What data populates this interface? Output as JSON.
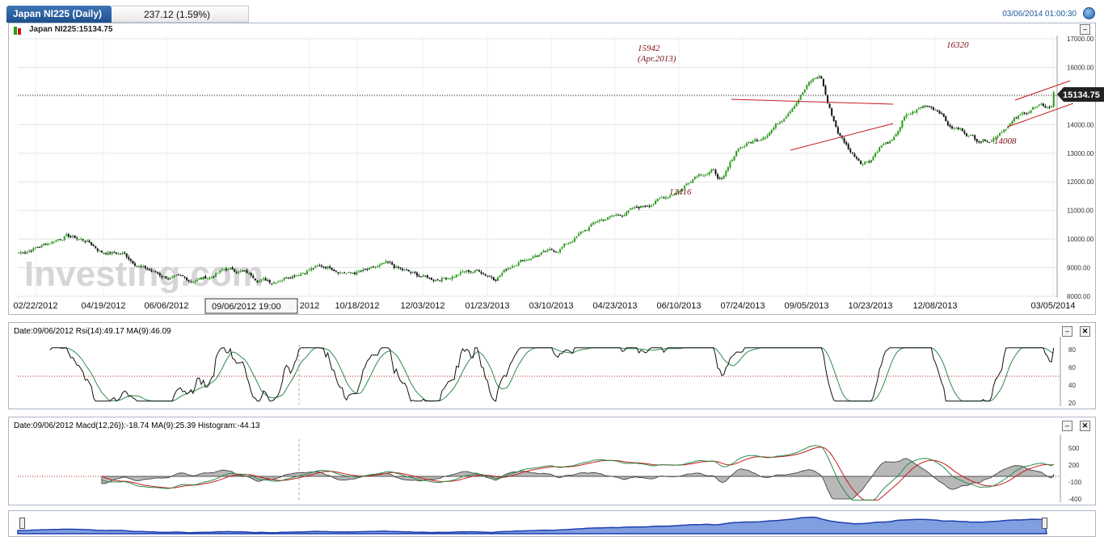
{
  "header": {
    "instrument_tab": "Japan NI225 (Daily)",
    "change": "237.12 (1.59%)",
    "datetime": "03/06/2014 01:00:30"
  },
  "main_panel": {
    "legend": "Japan NI225:15134.75",
    "last_price_tag": "15134.75",
    "crosshair_label": "09/06/2012 19:00",
    "watermark": "Investing.com",
    "y_ticks": [
      "17000.00",
      "16000.00",
      "15000.00",
      "14000.00",
      "13000.00",
      "12000.00",
      "11000.00",
      "10000.00",
      "9000.00",
      "8000.00"
    ],
    "x_ticks": [
      "02/22/2012",
      "04/19/2012",
      "06/06/2012",
      "",
      "2012",
      "10/18/2012",
      "12/03/2012",
      "01/23/2013",
      "03/10/2013",
      "04/23/2013",
      "06/10/2013",
      "07/24/2013",
      "09/05/2013",
      "10/23/2013",
      "12/08/2013",
      "03/05/2014"
    ],
    "annotations": {
      "peak_2013": "15942",
      "peak_2013_date": "(Apr.2013)",
      "trough_2013": "12416",
      "peak_2014": "16320",
      "trough_2014": "14008"
    }
  },
  "rsi_panel": {
    "legend": "Date:09/06/2012 Rsi(14):49.17 MA(9):46.09",
    "y_ticks": [
      "80",
      "60",
      "40",
      "20"
    ]
  },
  "macd_panel": {
    "legend": "Date:09/06/2012 Macd(12,26)):-18.74 MA(9):25.39 Histogram:-44.13",
    "y_ticks": [
      "500",
      "200",
      "-100",
      "-400"
    ]
  },
  "colors": {
    "up_candle": "#2a9d1b",
    "down_candle": "#111111",
    "annotation": "#7a0f12",
    "trendline": "#c41b1b",
    "navigator_fill": "#7f9fe0",
    "navigator_line": "#1f3fb0",
    "rsi_ma": "#2b8a4a",
    "macd_signal": "#c41b1b",
    "macd_line": "#2b8a4a"
  },
  "chart_data": [
    {
      "type": "candlestick",
      "title": "Japan NI225 (Daily)",
      "x_labels": [
        "02/22/2012",
        "04/19/2012",
        "06/06/2012",
        "09/06/2012",
        "10/18/2012",
        "12/03/2012",
        "01/23/2013",
        "03/10/2013",
        "04/23/2013",
        "06/10/2013",
        "07/24/2013",
        "09/05/2013",
        "10/23/2013",
        "12/08/2013",
        "03/05/2014"
      ],
      "ylim": [
        8000,
        17000
      ],
      "close_keypoints": [
        {
          "t": 0,
          "v": 9520
        },
        {
          "t": 0.02,
          "v": 9750
        },
        {
          "t": 0.045,
          "v": 10120
        },
        {
          "t": 0.065,
          "v": 9950
        },
        {
          "t": 0.08,
          "v": 9560
        },
        {
          "t": 0.1,
          "v": 9500
        },
        {
          "t": 0.12,
          "v": 9000
        },
        {
          "t": 0.14,
          "v": 8700
        },
        {
          "t": 0.165,
          "v": 8550
        },
        {
          "t": 0.185,
          "v": 8680
        },
        {
          "t": 0.2,
          "v": 8950
        },
        {
          "t": 0.215,
          "v": 8880
        },
        {
          "t": 0.23,
          "v": 8650
        },
        {
          "t": 0.245,
          "v": 8530
        },
        {
          "t": 0.265,
          "v": 8800
        },
        {
          "t": 0.285,
          "v": 9000
        },
        {
          "t": 0.3,
          "v": 9050
        },
        {
          "t": 0.32,
          "v": 8800
        },
        {
          "t": 0.34,
          "v": 8900
        },
        {
          "t": 0.355,
          "v": 9100
        },
        {
          "t": 0.37,
          "v": 8900
        },
        {
          "t": 0.385,
          "v": 8720
        },
        {
          "t": 0.4,
          "v": 8600
        },
        {
          "t": 0.415,
          "v": 8680
        },
        {
          "t": 0.43,
          "v": 8850
        },
        {
          "t": 0.445,
          "v": 8900
        },
        {
          "t": 0.46,
          "v": 8650
        },
        {
          "t": 0.48,
          "v": 9200
        },
        {
          "t": 0.5,
          "v": 9450
        },
        {
          "t": 0.52,
          "v": 9600
        },
        {
          "t": 0.54,
          "v": 10100
        },
        {
          "t": 0.56,
          "v": 10650
        },
        {
          "t": 0.58,
          "v": 10850
        },
        {
          "t": 0.6,
          "v": 11100
        },
        {
          "t": 0.62,
          "v": 11400
        },
        {
          "t": 0.64,
          "v": 11750
        },
        {
          "t": 0.655,
          "v": 12300
        },
        {
          "t": 0.67,
          "v": 12400
        },
        {
          "t": 0.68,
          "v": 12000
        },
        {
          "t": 0.695,
          "v": 13200
        },
        {
          "t": 0.715,
          "v": 13500
        },
        {
          "t": 0.735,
          "v": 14100
        },
        {
          "t": 0.75,
          "v": 14800
        },
        {
          "t": 0.765,
          "v": 15500
        },
        {
          "t": 0.775,
          "v": 15700
        },
        {
          "t": 0.782,
          "v": 14700
        },
        {
          "t": 0.792,
          "v": 13700
        },
        {
          "t": 0.805,
          "v": 13000
        },
        {
          "t": 0.815,
          "v": 12700
        },
        {
          "t": 0.823,
          "v": 12800
        },
        {
          "t": 0.833,
          "v": 13300
        },
        {
          "t": 0.845,
          "v": 13400
        },
        {
          "t": 0.855,
          "v": 14200
        },
        {
          "t": 0.868,
          "v": 14500
        },
        {
          "t": 0.878,
          "v": 14700
        },
        {
          "t": 0.89,
          "v": 14500
        },
        {
          "t": 0.9,
          "v": 13900
        },
        {
          "t": 0.912,
          "v": 13800
        },
        {
          "t": 0.925,
          "v": 13500
        },
        {
          "t": 0.94,
          "v": 13500
        },
        {
          "t": 0.955,
          "v": 14000
        },
        {
          "t": 0.968,
          "v": 14300
        },
        {
          "t": 0.98,
          "v": 14600
        },
        {
          "t": 1.0,
          "v": 14600
        }
      ],
      "annotations": [
        {
          "label": "15942",
          "sub": "(Apr.2013)",
          "value": 15942
        },
        {
          "label": "12416",
          "value": 12416
        },
        {
          "label": "16320",
          "value": 16320
        },
        {
          "label": "14008",
          "value": 14008
        }
      ],
      "last_value": 15134.75
    },
    {
      "type": "line",
      "title": "Rsi(14)",
      "ylim": [
        20,
        80
      ],
      "y_ticks": [
        80,
        60,
        40,
        20
      ],
      "reference": 50,
      "series": [
        {
          "name": "Rsi(14)",
          "last": 49.17
        },
        {
          "name": "MA(9)",
          "last": 46.09
        }
      ]
    },
    {
      "type": "line",
      "title": "Macd(12,26)",
      "ylim": [
        -400,
        500
      ],
      "y_ticks": [
        500,
        200,
        -100,
        -400
      ],
      "series": [
        {
          "name": "Macd(12,26)",
          "last": -18.74
        },
        {
          "name": "MA(9)",
          "last": 25.39
        },
        {
          "name": "Histogram",
          "last": -44.13
        }
      ]
    }
  ]
}
